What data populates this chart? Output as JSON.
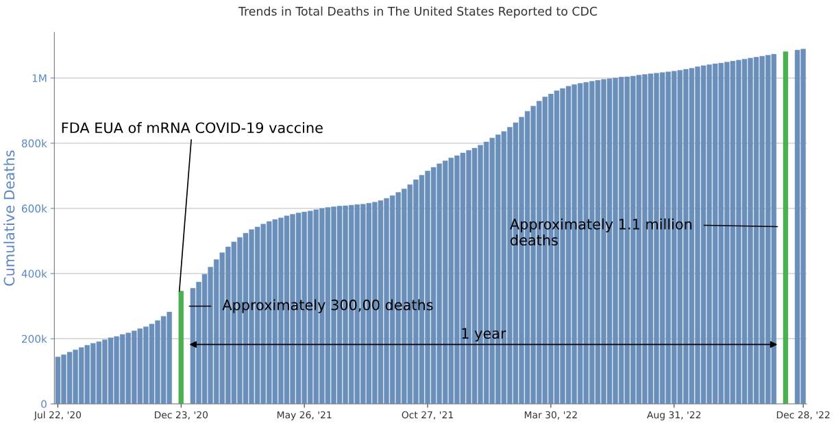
{
  "chart_data": {
    "type": "bar",
    "title": "Trends in Total Deaths in The United States Reported to CDC",
    "ylabel": "Cumulative Deaths",
    "categories": [
      "Jul 22, '20",
      null,
      null,
      null,
      null,
      null,
      null,
      null,
      null,
      null,
      null,
      null,
      null,
      null,
      null,
      null,
      null,
      null,
      null,
      null,
      null,
      "Dec 23, '20",
      null,
      null,
      null,
      null,
      null,
      null,
      null,
      null,
      null,
      null,
      null,
      null,
      null,
      null,
      null,
      null,
      null,
      null,
      null,
      null,
      "May 26, '21",
      null,
      null,
      null,
      null,
      null,
      null,
      null,
      null,
      null,
      null,
      null,
      null,
      null,
      null,
      null,
      null,
      null,
      null,
      null,
      null,
      "Oct 27, '21",
      null,
      null,
      null,
      null,
      null,
      null,
      null,
      null,
      null,
      null,
      null,
      null,
      null,
      null,
      null,
      null,
      null,
      null,
      null,
      null,
      "Mar 30, '22",
      null,
      null,
      null,
      null,
      null,
      null,
      null,
      null,
      null,
      null,
      null,
      null,
      null,
      null,
      null,
      null,
      null,
      null,
      null,
      null,
      "Aug 31, '22",
      null,
      null,
      null,
      null,
      null,
      null,
      null,
      null,
      null,
      null,
      null,
      null,
      null,
      null,
      null,
      null,
      null,
      null,
      null,
      null,
      null,
      "Dec 28, '22"
    ],
    "series": [
      {
        "color": "#6b8fbb",
        "values": [
          144000,
          151000,
          159000,
          166000,
          173000,
          180000,
          186000,
          191000,
          197000,
          203000,
          207000,
          213000,
          218000,
          224000,
          231000,
          237000,
          245000,
          256000,
          269000,
          282000,
          null,
          null,
          null,
          355000,
          374000,
          398000,
          420000,
          443000,
          464000,
          482000,
          497000,
          511000,
          524000,
          535000,
          543000,
          552000,
          560000,
          566000,
          571000,
          577000,
          582000,
          586000,
          589000,
          592000,
          596000,
          600000,
          603000,
          605000,
          607000,
          608000,
          610000,
          612000,
          613000,
          616000,
          619000,
          624000,
          631000,
          639000,
          649000,
          660000,
          673000,
          688000,
          702000,
          715000,
          726000,
          737000,
          746000,
          755000,
          762000,
          770000,
          778000,
          785000,
          794000,
          804000,
          816000,
          826000,
          836000,
          849000,
          863000,
          880000,
          898000,
          914000,
          929000,
          942000,
          951000,
          961000,
          968000,
          975000,
          980000,
          984000,
          987000,
          990000,
          993000,
          996000,
          998000,
          1000000,
          1003000,
          1004000,
          1006000,
          1009000,
          1011000,
          1013000,
          1015000,
          1017000,
          1019000,
          1021000,
          1024000,
          1027000,
          1030000,
          1035000,
          1038000,
          1041000,
          1044000,
          1046000,
          1049000,
          1052000,
          1055000,
          1058000,
          1061000,
          1064000,
          1067000,
          1070000,
          1073000,
          null,
          null,
          null,
          1086000,
          1089000
        ]
      },
      {
        "color": "#4caf50",
        "values": [
          null,
          null,
          null,
          null,
          null,
          null,
          null,
          null,
          null,
          null,
          null,
          null,
          null,
          null,
          null,
          null,
          null,
          null,
          null,
          null,
          null,
          346000,
          null,
          null,
          null,
          null,
          null,
          null,
          null,
          null,
          null,
          null,
          null,
          null,
          null,
          null,
          null,
          null,
          null,
          null,
          null,
          null,
          null,
          null,
          null,
          null,
          null,
          null,
          null,
          null,
          null,
          null,
          null,
          null,
          null,
          null,
          null,
          null,
          null,
          null,
          null,
          null,
          null,
          null,
          null,
          null,
          null,
          null,
          null,
          null,
          null,
          null,
          null,
          null,
          null,
          null,
          null,
          null,
          null,
          null,
          null,
          null,
          null,
          null,
          null,
          null,
          null,
          null,
          null,
          null,
          null,
          null,
          null,
          null,
          null,
          null,
          null,
          null,
          null,
          null,
          null,
          null,
          null,
          null,
          null,
          null,
          null,
          null,
          null,
          null,
          null,
          null,
          null,
          null,
          null,
          null,
          null,
          null,
          null,
          null,
          null,
          null,
          null,
          null,
          1081000,
          null,
          null,
          null
        ]
      }
    ],
    "ylim": [
      0,
      1140000
    ],
    "yticks": [
      0,
      {
        "value": 200000,
        "label": "200k"
      },
      {
        "value": 400000,
        "label": "400k"
      },
      {
        "value": 600000,
        "label": "600k"
      },
      {
        "value": 800000,
        "label": "800k"
      },
      {
        "value": 1000000,
        "label": "1M"
      }
    ],
    "grid": "y",
    "annotations": [
      {
        "text": "FDA EUA of mRNA COVID-19 vaccine",
        "x": "Dec 23, '20",
        "y": 346000
      },
      {
        "text": "Approximately 300,00 deaths",
        "x": "Dec 23, '20",
        "y": 300000
      },
      {
        "text": "Approximately 1.1 million\ndeaths",
        "y": 544000
      },
      "1 year"
    ]
  }
}
